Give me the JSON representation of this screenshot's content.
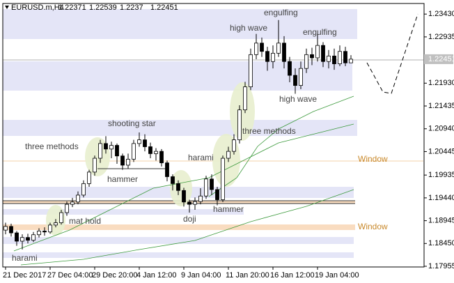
{
  "chart_data": {
    "type": "candlestick",
    "symbol": "EURUSD.m,H4",
    "ylim": [
      1.1794,
      1.2366
    ],
    "yticks": [
      {
        "value": 1.2343,
        "label": "1.23430"
      },
      1.22935,
      {
        "value": 1.2193,
        "label": "1.21930"
      },
      1.21435,
      {
        "value": 1.2094,
        "label": "1.20940"
      },
      1.20445,
      1.19935,
      {
        "value": 1.1944,
        "label": "1.19440"
      },
      1.18945,
      {
        "value": 1.1845,
        "label": "1.18450"
      },
      1.17955
    ],
    "categories": [
      "21 Dec 2017",
      null,
      null,
      null,
      null,
      null,
      null,
      null,
      "27 Dec 04:00",
      null,
      null,
      null,
      null,
      null,
      null,
      null,
      "29 Dec 20:00",
      null,
      null,
      null,
      null,
      null,
      null,
      null,
      "4 Jan 12:00",
      null,
      null,
      null,
      null,
      null,
      null,
      null,
      "9 Jan 04:00",
      null,
      null,
      null,
      null,
      null,
      null,
      null,
      "11 Jan 20:00",
      null,
      null,
      null,
      null,
      null,
      null,
      null,
      "16 Jan 12:00",
      null,
      null,
      null,
      null,
      null,
      null,
      null,
      "19 Jan 04:00",
      null,
      null,
      null,
      null,
      null,
      null
    ],
    "candles": [
      [
        1.1874,
        1.189,
        1.1865,
        1.1882
      ],
      [
        1.1882,
        1.1888,
        1.186,
        1.1868
      ],
      [
        1.1868,
        1.1872,
        1.184,
        1.185
      ],
      [
        1.185,
        1.1865,
        1.1832,
        1.1858
      ],
      [
        1.1858,
        1.1866,
        1.1845,
        1.1852
      ],
      [
        1.1852,
        1.187,
        1.1848,
        1.1864
      ],
      [
        1.1864,
        1.1878,
        1.1858,
        1.1872
      ],
      [
        1.1872,
        1.188,
        1.1862,
        1.187
      ],
      [
        1.187,
        1.189,
        1.1866,
        1.1885
      ],
      [
        1.1885,
        1.1898,
        1.188,
        1.189
      ],
      [
        1.189,
        1.1918,
        1.1886,
        1.1912
      ],
      [
        1.1912,
        1.1936,
        1.1905,
        1.193
      ],
      [
        1.193,
        1.1944,
        1.1924,
        1.1935
      ],
      [
        1.1935,
        1.1958,
        1.193,
        1.195
      ],
      [
        1.195,
        1.1982,
        1.1945,
        1.1975
      ],
      [
        1.1975,
        1.2005,
        1.1968,
        1.2
      ],
      [
        1.2,
        1.2036,
        1.1992,
        1.203
      ],
      [
        1.203,
        1.207,
        1.202,
        1.2062
      ],
      [
        1.2062,
        1.2078,
        1.204,
        1.205
      ],
      [
        1.205,
        1.2066,
        1.203,
        1.2058
      ],
      [
        1.2058,
        1.2062,
        1.2018,
        1.2035
      ],
      [
        1.2035,
        1.204,
        1.2005,
        1.2015
      ],
      [
        1.2015,
        1.204,
        1.2008,
        1.2028
      ],
      [
        1.2028,
        1.207,
        1.2022,
        1.2062
      ],
      [
        1.2062,
        1.2086,
        1.2055,
        1.207
      ],
      [
        1.207,
        1.2082,
        1.2045,
        1.2055
      ],
      [
        1.2055,
        1.2064,
        1.203,
        1.204
      ],
      [
        1.204,
        1.2052,
        1.2025,
        1.2045
      ],
      [
        1.2045,
        1.205,
        1.2012,
        1.202
      ],
      [
        1.202,
        1.2025,
        1.198,
        1.199
      ],
      [
        1.199,
        1.1995,
        1.196,
        1.1975
      ],
      [
        1.1975,
        1.1982,
        1.195,
        1.196
      ],
      [
        1.196,
        1.1966,
        1.1925,
        1.1935
      ],
      [
        1.1935,
        1.194,
        1.1912,
        1.193
      ],
      [
        1.193,
        1.1945,
        1.1918,
        1.1936
      ],
      [
        1.1936,
        1.1965,
        1.193,
        1.1948
      ],
      [
        1.1948,
        1.1992,
        1.1942,
        1.1985
      ],
      [
        1.1985,
        1.1995,
        1.195,
        1.1962
      ],
      [
        1.1962,
        1.1968,
        1.1928,
        1.194
      ],
      [
        1.194,
        1.2036,
        1.1935,
        1.203
      ],
      [
        1.203,
        1.2055,
        1.2022,
        1.2045
      ],
      [
        1.2045,
        1.2082,
        1.2038,
        1.207
      ],
      [
        1.207,
        1.2145,
        1.2062,
        1.2135
      ],
      [
        1.2135,
        1.2196,
        1.2128,
        1.2185
      ],
      [
        1.2185,
        1.2268,
        1.2178,
        1.2255
      ],
      [
        1.2255,
        1.23,
        1.2245,
        1.228
      ],
      [
        1.228,
        1.2292,
        1.225,
        1.2262
      ],
      [
        1.2262,
        1.2272,
        1.222,
        1.224
      ],
      [
        1.224,
        1.2275,
        1.2225,
        1.2258
      ],
      [
        1.2258,
        1.233,
        1.225,
        1.228
      ],
      [
        1.228,
        1.2295,
        1.2225,
        1.224
      ],
      [
        1.224,
        1.225,
        1.2195,
        1.221
      ],
      [
        1.221,
        1.2225,
        1.217,
        1.2188
      ],
      [
        1.2188,
        1.224,
        1.218,
        1.2225
      ],
      [
        1.2225,
        1.2268,
        1.2215,
        1.2255
      ],
      [
        1.2255,
        1.227,
        1.2232,
        1.2248
      ],
      [
        1.2248,
        1.23,
        1.224,
        1.2275
      ],
      [
        1.2275,
        1.2282,
        1.2228,
        1.224
      ],
      [
        1.224,
        1.2265,
        1.2225,
        1.2252
      ],
      [
        1.2252,
        1.2268,
        1.2222,
        1.2235
      ],
      [
        1.2235,
        1.2275,
        1.223,
        1.2262
      ],
      [
        1.2262,
        1.2272,
        1.223,
        1.2237
      ],
      [
        1.22371,
        1.22539,
        1.2237,
        1.22451
      ]
    ],
    "annotations": [
      "harami",
      "mat hold",
      "three methods",
      "hammer",
      "shooting star",
      "harami",
      "doji",
      "hammer",
      "three methods",
      "high wave",
      "engulfing",
      "high wave",
      "engulfing",
      "Window",
      "Window"
    ]
  }
}
